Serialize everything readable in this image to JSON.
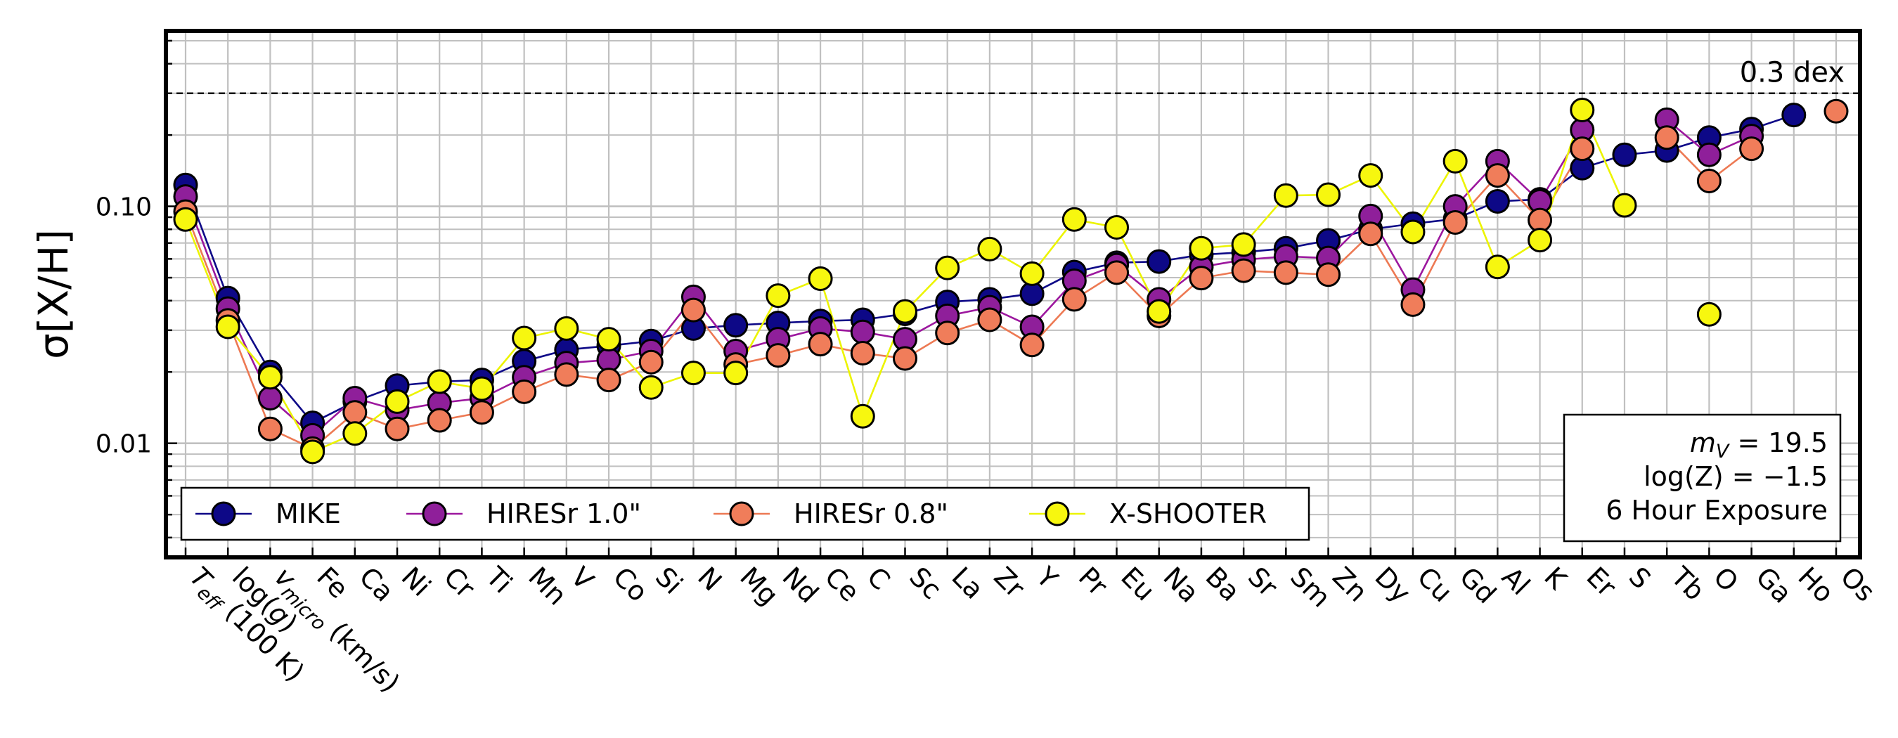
{
  "chart_data": {
    "type": "line",
    "title": "",
    "ylabel": "σ[X/H]",
    "xlabel": "",
    "yscale": "log",
    "ylim": [
      0.0033,
      0.55
    ],
    "yticks": [
      {
        "value": 0.01,
        "label": "0.01"
      },
      {
        "value": 0.1,
        "label": "0.10"
      }
    ],
    "grid": true,
    "reference_line": {
      "value": 0.3,
      "label": "0.3 dex",
      "style": "dashed",
      "color": "#000000"
    },
    "categories": [
      "Teff (100 K)",
      "log(g)",
      "vmicro (km/s)",
      "Fe",
      "Ca",
      "Ni",
      "Cr",
      "Ti",
      "Mn",
      "V",
      "Co",
      "Si",
      "N",
      "Mg",
      "Nd",
      "Ce",
      "C",
      "Sc",
      "La",
      "Zr",
      "Y",
      "Pr",
      "Eu",
      "Na",
      "Ba",
      "Sr",
      "Sm",
      "Zn",
      "Dy",
      "Cu",
      "Gd",
      "Al",
      "K",
      "Er",
      "S",
      "Tb",
      "O",
      "Ga",
      "Ho",
      "Os"
    ],
    "category_display": [
      {
        "main": "T",
        "sub": "eff",
        "rest": " (100 K)"
      },
      {
        "main": "log(",
        "italic": "g",
        "rest": ")"
      },
      {
        "main": "v",
        "sub": "micro",
        "rest": " (km/s)"
      }
    ],
    "series": [
      {
        "name": "MIKE",
        "color": "#0d0887",
        "line_color": "#0d0887",
        "values": [
          0.123,
          0.041,
          0.02,
          0.0122,
          0.015,
          0.0175,
          0.0182,
          0.0185,
          0.0222,
          0.0248,
          0.0258,
          0.027,
          0.0305,
          0.0315,
          0.0322,
          0.0328,
          0.0332,
          0.0352,
          0.0395,
          0.0405,
          0.0428,
          0.0528,
          0.0578,
          0.0585,
          0.0625,
          0.064,
          0.0665,
          0.0718,
          0.08,
          0.0845,
          0.0885,
          0.105,
          0.107,
          0.145,
          0.165,
          0.172,
          0.195,
          0.212,
          0.243,
          null
        ]
      },
      {
        "name": "HIRESr 1.0\"",
        "color": "#8f1f9a",
        "line_color": "#9c179e",
        "values": [
          0.11,
          0.037,
          0.0155,
          0.0108,
          0.0155,
          0.0138,
          0.0148,
          0.0155,
          0.019,
          0.0218,
          0.0225,
          0.0245,
          0.0415,
          0.0245,
          0.0275,
          0.0305,
          0.0295,
          0.0275,
          0.0345,
          0.0375,
          0.031,
          0.0485,
          0.0565,
          0.0405,
          0.0555,
          0.0595,
          0.0615,
          0.0605,
          0.091,
          0.0445,
          0.1,
          0.155,
          0.105,
          0.21,
          null,
          0.232,
          0.165,
          0.198,
          null,
          null
        ]
      },
      {
        "name": "HIRESr 0.8\"",
        "color": "#f07d5a",
        "line_color": "#ed7953",
        "values": [
          0.095,
          0.033,
          0.0115,
          0.0095,
          0.0135,
          0.0115,
          0.0125,
          0.0135,
          0.0165,
          0.0195,
          0.0185,
          0.022,
          0.0365,
          0.0215,
          0.0235,
          0.0262,
          0.024,
          0.0228,
          0.0292,
          0.0332,
          0.026,
          0.0405,
          0.0525,
          0.0345,
          0.0498,
          0.0535,
          0.0525,
          0.0515,
          0.0765,
          0.0385,
          0.0855,
          0.135,
          0.0875,
          0.175,
          null,
          0.195,
          0.128,
          0.175,
          null,
          0.252
        ]
      },
      {
        "name": "X-SHOOTER",
        "color": "#f7f70f",
        "line_color": "#ecf400",
        "values": [
          0.088,
          0.031,
          0.019,
          0.0092,
          0.011,
          0.015,
          0.0182,
          0.017,
          0.0278,
          0.0305,
          0.0275,
          0.0172,
          0.0198,
          0.0198,
          0.042,
          0.0495,
          0.013,
          0.036,
          0.055,
          0.066,
          0.052,
          0.088,
          0.0815,
          0.036,
          0.0665,
          0.069,
          0.111,
          0.112,
          0.135,
          0.078,
          0.155,
          0.0555,
          0.072,
          0.255,
          0.101,
          null,
          0.035,
          null,
          null,
          null
        ]
      }
    ],
    "legend": {
      "placement": "lower-left",
      "columns": 4
    },
    "annotation": {
      "placement": "lower-right",
      "lines": [
        {
          "pre": "m",
          "sub": "V",
          "post": " = 19.5"
        },
        {
          "pre": "log(Z) = −1.5"
        },
        {
          "pre": "6 Hour Exposure"
        }
      ]
    }
  }
}
